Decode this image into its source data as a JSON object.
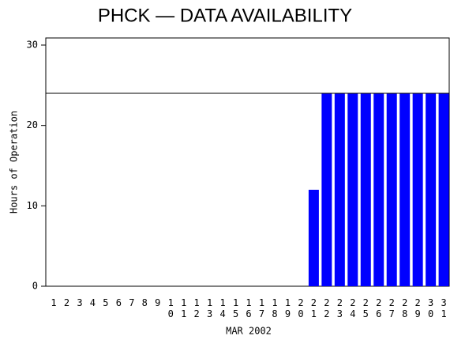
{
  "chart_data": {
    "type": "bar",
    "title": "PHCK — DATA AVAILABILITY",
    "x_label": "MAR 2002",
    "y_label": "Hours of Operation",
    "categories": [
      "1",
      "2",
      "3",
      "4",
      "5",
      "6",
      "7",
      "8",
      "9",
      "10",
      "11",
      "12",
      "13",
      "14",
      "15",
      "16",
      "17",
      "18",
      "19",
      "20",
      "21",
      "22",
      "23",
      "24",
      "25",
      "26",
      "27",
      "28",
      "29",
      "30",
      "31"
    ],
    "values": [
      0,
      0,
      0,
      0,
      0,
      0,
      0,
      0,
      0,
      0,
      0,
      0,
      0,
      0,
      0,
      0,
      0,
      0,
      0,
      0,
      12,
      24,
      24,
      24,
      24,
      24,
      24,
      24,
      24,
      24,
      24
    ],
    "color": "#0000ff",
    "reference_line": 24,
    "ylim": [
      0,
      30
    ],
    "yticks": [
      0,
      10,
      20,
      30
    ]
  }
}
